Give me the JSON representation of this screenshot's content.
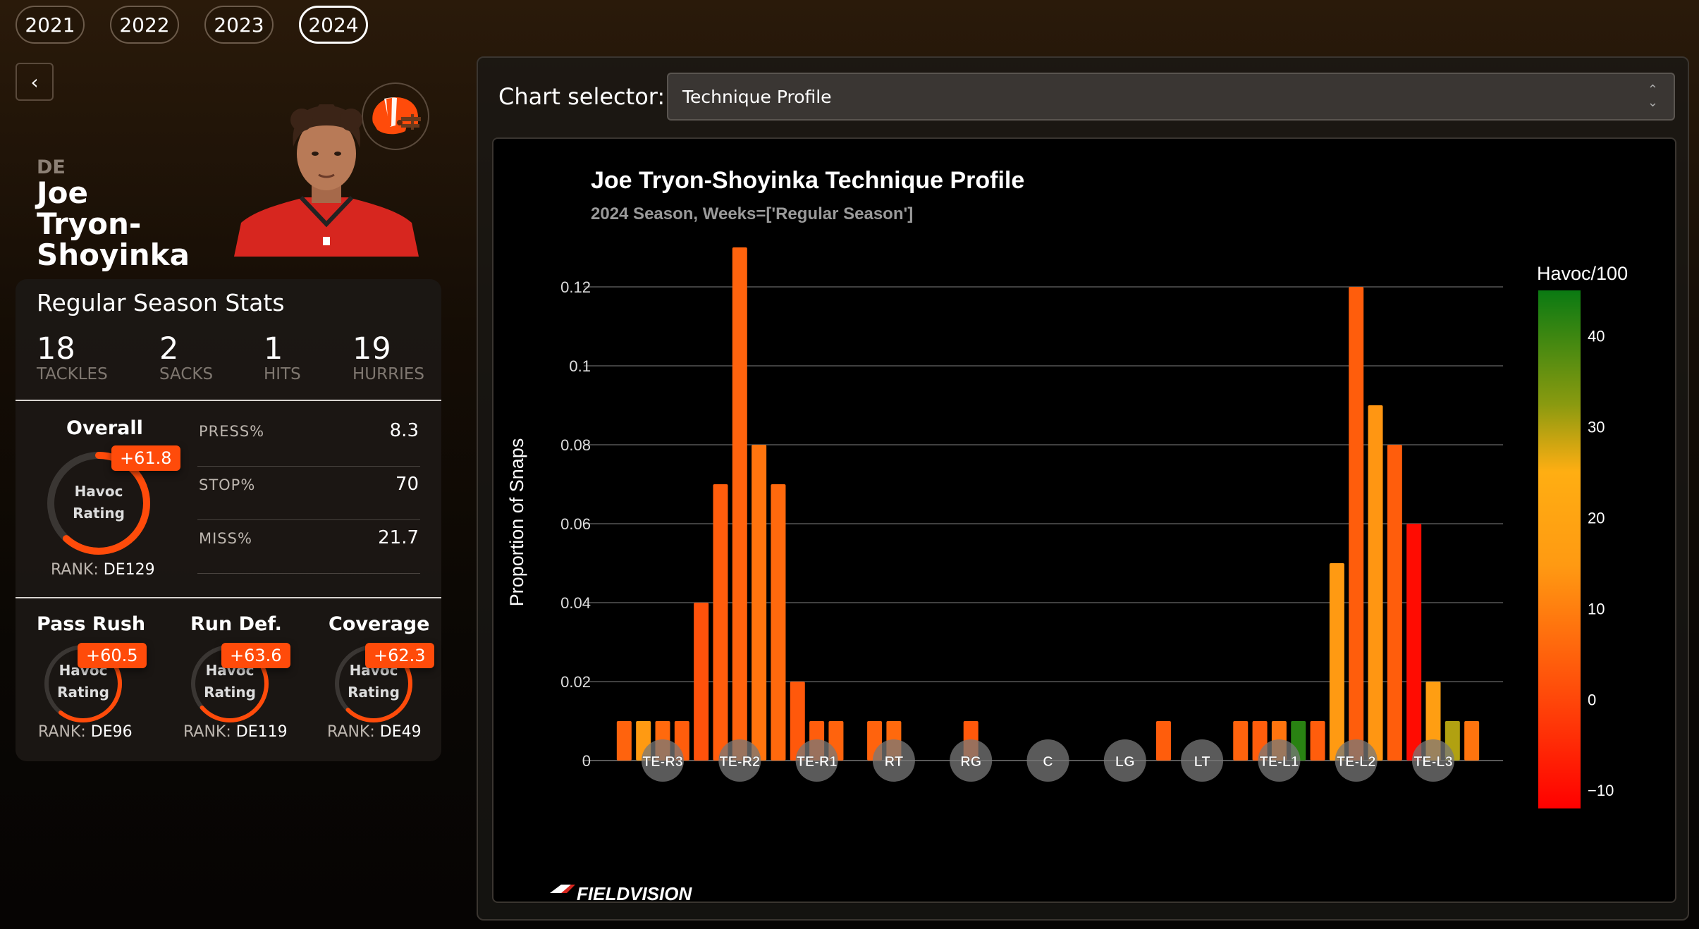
{
  "years": [
    "2021",
    "2022",
    "2023",
    "2024"
  ],
  "active_year": "2024",
  "back_label": "‹",
  "player": {
    "position": "DE",
    "name_lines": [
      "Joe",
      "Tryon-",
      "Shoyinka"
    ]
  },
  "stats_card": {
    "title": "Regular Season Stats",
    "stats": [
      {
        "value": "18",
        "label": "TACKLES"
      },
      {
        "value": "2",
        "label": "SACKS"
      },
      {
        "value": "1",
        "label": "HITS"
      },
      {
        "value": "19",
        "label": "HURRIES"
      }
    ],
    "overall": {
      "title": "Overall",
      "badge": "+61.8",
      "gauge_line1": "Havoc",
      "gauge_line2": "Rating",
      "gauge_fill": 0.618,
      "rank_label": "RANK:",
      "rank_value": "DE129"
    },
    "metrics": [
      {
        "label": "PRESS%",
        "value": "8.3"
      },
      {
        "label": "STOP%",
        "value": "70"
      },
      {
        "label": "MISS%",
        "value": "21.7"
      }
    ],
    "sub_ratings": [
      {
        "title": "Pass Rush",
        "badge": "+60.5",
        "gauge_line1": "Havoc",
        "gauge_line2": "Rating",
        "gauge_fill": 0.605,
        "rank_label": "RANK:",
        "rank_value": "DE96"
      },
      {
        "title": "Run Def.",
        "badge": "+63.6",
        "gauge_line1": "Havoc",
        "gauge_line2": "Rating",
        "gauge_fill": 0.636,
        "rank_label": "RANK:",
        "rank_value": "DE119"
      },
      {
        "title": "Coverage",
        "badge": "+62.3",
        "gauge_line1": "Havoc",
        "gauge_line2": "Rating",
        "gauge_fill": 0.623,
        "rank_label": "RANK:",
        "rank_value": "DE49"
      }
    ]
  },
  "selector": {
    "label": "Chart selector:",
    "value": "Technique Profile"
  },
  "colors": {
    "accent": "#ff4b0a",
    "gauge_track": "#3a3633"
  },
  "chart_data": {
    "type": "bar",
    "title": "Joe Tryon-Shoyinka Technique Profile",
    "subtitle": "2024 Season, Weeks=['Regular Season']",
    "ylabel": "Proportion of Snaps",
    "ylim": [
      0,
      0.135
    ],
    "yticks": [
      0,
      0.02,
      0.04,
      0.06,
      0.08,
      0.1,
      0.12
    ],
    "ytick_labels": [
      "0",
      "0.02",
      "0.04",
      "0.06",
      "0.08",
      "0.1",
      "0.12"
    ],
    "grid": true,
    "colorbar": {
      "title": "Havoc/100",
      "min": -12,
      "max": 45,
      "ticks": [
        -10,
        0,
        10,
        20,
        30,
        40
      ],
      "tick_labels": [
        "−10",
        "0",
        "10",
        "20",
        "30",
        "40"
      ]
    },
    "techniques": [
      "TE-R3",
      "TE-R2",
      "TE-R1",
      "RT",
      "RG",
      "C",
      "LG",
      "LT",
      "TE-L1",
      "TE-L2",
      "TE-L3"
    ],
    "bars": [
      {
        "slot": -0.5,
        "value": 0.01,
        "havoc": 5
      },
      {
        "slot": -0.25,
        "value": 0.01,
        "havoc": 15
      },
      {
        "slot": 0.0,
        "value": 0.01,
        "havoc": 6
      },
      {
        "slot": 0.25,
        "value": 0.01,
        "havoc": 4
      },
      {
        "slot": 0.5,
        "value": 0.04,
        "havoc": 2
      },
      {
        "slot": 0.75,
        "value": 0.07,
        "havoc": 4
      },
      {
        "slot": 1.0,
        "value": 0.13,
        "havoc": 5
      },
      {
        "slot": 1.25,
        "value": 0.08,
        "havoc": 8
      },
      {
        "slot": 1.5,
        "value": 0.07,
        "havoc": 6
      },
      {
        "slot": 1.75,
        "value": 0.02,
        "havoc": 3
      },
      {
        "slot": 2.0,
        "value": 0.01,
        "havoc": 4
      },
      {
        "slot": 2.25,
        "value": 0.01,
        "havoc": 5
      },
      {
        "slot": 2.75,
        "value": 0.01,
        "havoc": 5
      },
      {
        "slot": 3.0,
        "value": 0.01,
        "havoc": 6
      },
      {
        "slot": 4.0,
        "value": 0.01,
        "havoc": 3
      },
      {
        "slot": 6.5,
        "value": 0.01,
        "havoc": 4
      },
      {
        "slot": 7.5,
        "value": 0.01,
        "havoc": 5
      },
      {
        "slot": 7.75,
        "value": 0.01,
        "havoc": 4
      },
      {
        "slot": 8.0,
        "value": 0.01,
        "havoc": 8
      },
      {
        "slot": 8.25,
        "value": 0.01,
        "havoc": 42
      },
      {
        "slot": 8.5,
        "value": 0.01,
        "havoc": 4
      },
      {
        "slot": 8.75,
        "value": 0.05,
        "havoc": 15
      },
      {
        "slot": 9.0,
        "value": 0.12,
        "havoc": 4
      },
      {
        "slot": 9.25,
        "value": 0.09,
        "havoc": 14
      },
      {
        "slot": 9.5,
        "value": 0.08,
        "havoc": 4
      },
      {
        "slot": 9.75,
        "value": 0.06,
        "havoc": -10
      },
      {
        "slot": 10.0,
        "value": 0.02,
        "havoc": 17
      },
      {
        "slot": 10.25,
        "value": 0.01,
        "havoc": 30
      },
      {
        "slot": 10.5,
        "value": 0.01,
        "havoc": 8
      }
    ],
    "watermark": "FIELDVISION"
  }
}
